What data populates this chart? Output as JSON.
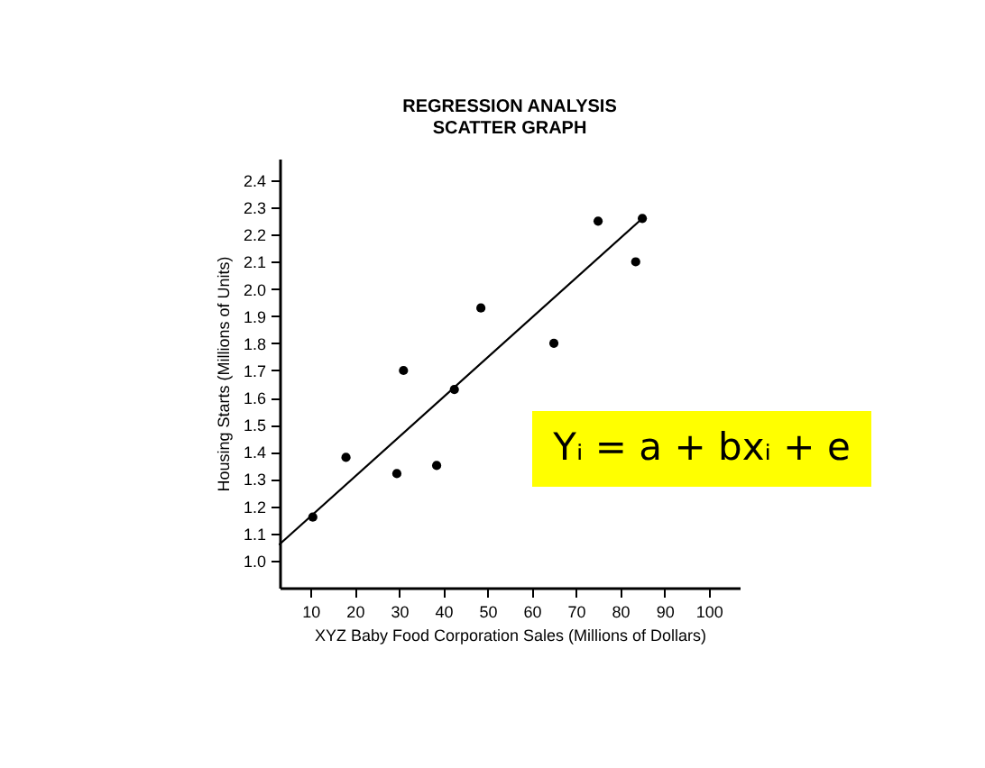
{
  "chart_data": {
    "type": "scatter",
    "title": "REGRESSION ANALYSIS\nSCATTER GRAPH",
    "xlabel": "XYZ Baby Food Corporation Sales (Millions of Dollars)",
    "ylabel": "Housing Starts (Millions of Units)",
    "annotations": [
      "Yᵢ = a + bxᵢ + e"
    ],
    "series": [
      {
        "color": "#000000",
        "x": [
          10.5,
          18,
          29.5,
          31,
          38.5,
          42.5,
          48.5,
          65,
          75,
          83.5,
          85
        ],
        "values": [
          1.16,
          1.38,
          1.32,
          1.7,
          1.35,
          1.63,
          1.93,
          1.8,
          2.25,
          2.1,
          2.26
        ],
        "marker": "circle"
      },
      {
        "type": "line",
        "color": "#000000",
        "x": [
          3,
          85
        ],
        "values": [
          1.06,
          2.26
        ],
        "line_style": "solid"
      }
    ],
    "xlim": [
      3,
      107
    ],
    "ylim": [
      0.9,
      2.48
    ],
    "xticks": [
      10,
      20,
      30,
      40,
      50,
      60,
      70,
      80,
      90,
      100
    ],
    "yticks": [
      {
        "value": 1,
        "label": "1.0"
      },
      1.1,
      1.2,
      1.3,
      1.4,
      1.5,
      1.6,
      1.7,
      1.8,
      1.9,
      {
        "value": 2,
        "label": "2.0"
      },
      2.1,
      2.2,
      2.3,
      2.4
    ],
    "grid": false
  }
}
